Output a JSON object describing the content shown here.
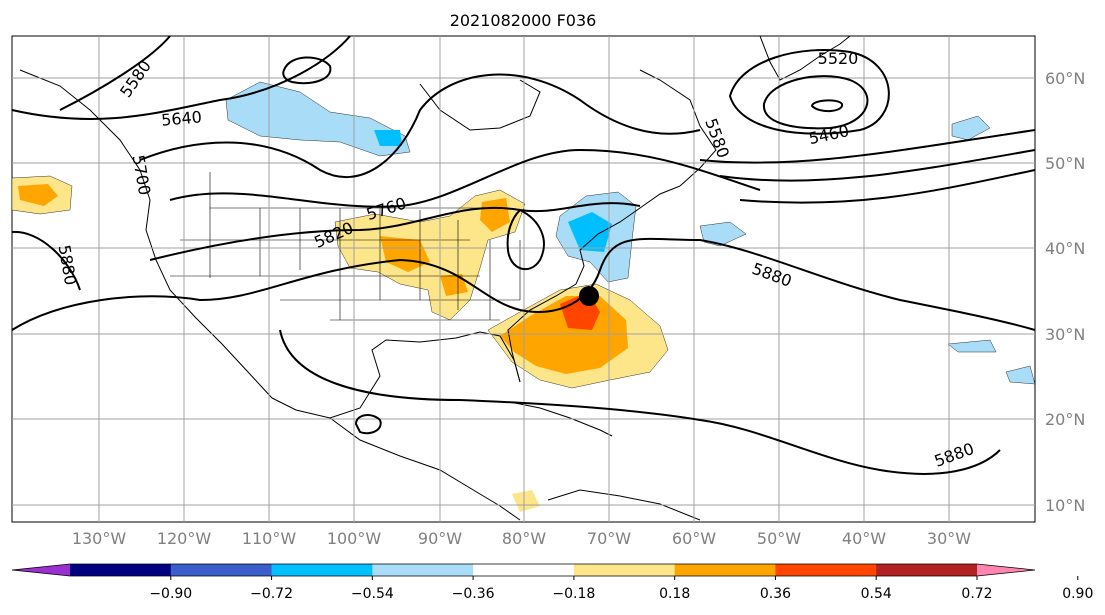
{
  "title": "2021082000 F036",
  "lon_labels": [
    "130°W",
    "120°W",
    "110°W",
    "100°W",
    "90°W",
    "80°W",
    "70°W",
    "60°W",
    "50°W",
    "40°W",
    "30°W"
  ],
  "lat_labels": [
    "60°N",
    "50°N",
    "40°N",
    "30°N",
    "20°N",
    "10°N"
  ],
  "contour_labels": [
    "5520",
    "5580",
    "5460",
    "5640",
    "5580",
    "5700",
    "5760",
    "5820",
    "5880",
    "5880",
    "5880"
  ],
  "colorbar": {
    "ticks": [
      "−0.90",
      "−0.72",
      "−0.54",
      "−0.36",
      "−0.18",
      "0.18",
      "0.36",
      "0.54",
      "0.72",
      "0.90"
    ],
    "colors": [
      "#9b30d0",
      "#000080",
      "#3a5fcd",
      "#00bfff",
      "#a9dcf7",
      "#ffffff",
      "#fde68a",
      "#ffa500",
      "#ff4500",
      "#b22222",
      "#ff85b0"
    ]
  },
  "colors": {
    "land_outline": "#000000",
    "grid": "#a0a0a0",
    "positive_anomaly_light": "#fde68a",
    "positive_anomaly_medium": "#ffa500",
    "positive_anomaly_strong": "#ff4500",
    "negative_anomaly_light": "#a9dcf7",
    "negative_anomaly_medium": "#00bfff"
  },
  "marker": "storm-center-dot"
}
